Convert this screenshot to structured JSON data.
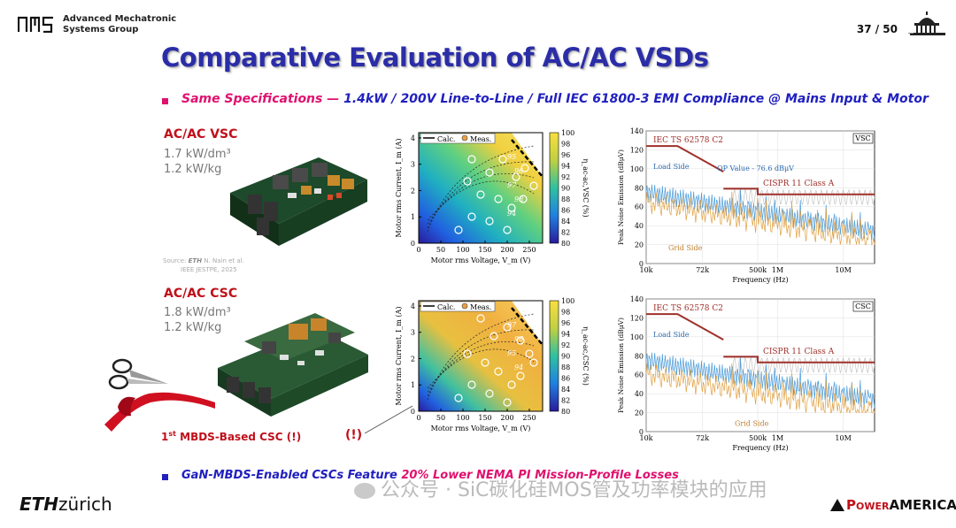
{
  "header": {
    "group_line1": "Advanced Mechatronic",
    "group_line2": "Systems Group",
    "page": "37 / 50"
  },
  "title": "Comparative Evaluation of AC/AC VSDs",
  "specs": {
    "pink": "Same Specifications — ",
    "blue": "1.4kW / 200V Line-to-Line / Full IEC 61800-3 EMI Compliance @ Mains Input & Motor"
  },
  "vsc": {
    "label": "AC/AC VSC",
    "vol_density": "1.7 kW/dm³",
    "mass_density": "1.2 kW/kg",
    "source_prefix": "Source: ",
    "source_logo": "ETH",
    "source_line1": " N. Nain et al.",
    "source_line2": "IEEE JESTPE, 2025"
  },
  "csc": {
    "label": "AC/AC CSC",
    "vol_density": "1.8 kW/dm³",
    "mass_density": "1.2 kW/kg",
    "mbds_pre": "1",
    "mbds_sup": "st",
    "mbds_post": " MBDS-Based CSC (!)",
    "excl": "(!)"
  },
  "bottom": {
    "blue": "GaN-MBDS-Enabled CSCs Feature ",
    "pink": "20% Lower NEMA PI Mission-Profile Losses"
  },
  "watermark": "公众号 · SiC碳化硅MOS管及功率模块的应用",
  "footer": {
    "eth_bold": "ETH",
    "eth_rest": "zürich",
    "pa_1": "P",
    "pa_2": "OWER",
    "pa_3": "AMERICA"
  },
  "colors": {
    "title": "#2b2da8",
    "pink": "#e0106e",
    "red": "#c0101a",
    "blue": "#2020c0"
  },
  "chart_data": [
    {
      "type": "heatmap",
      "name": "VSC efficiency map",
      "xlabel": "Motor rms Voltage, V_m (V)",
      "ylabel": "Motor rms Current, I_m (A)",
      "xticks": [
        "0",
        "50",
        "100",
        "150",
        "200",
        "250"
      ],
      "yticks": [
        "0",
        "1",
        "2",
        "3",
        "4"
      ],
      "xlim": [
        0,
        280
      ],
      "ylim": [
        0,
        4.2
      ],
      "colorbar_label": "η_ac-ac,VSC (%)",
      "colorbar_ticks": [
        "100",
        "98",
        "96",
        "94",
        "92",
        "90",
        "88",
        "86",
        "84",
        "82",
        "80"
      ],
      "legend": [
        "Calc.",
        "Meas."
      ],
      "contour_labels": [
        "95",
        "96",
        "97",
        "98",
        "94"
      ]
    },
    {
      "type": "heatmap",
      "name": "CSC efficiency map",
      "xlabel": "Motor rms Voltage, V_m (V)",
      "ylabel": "Motor rms Current, I_m (A)",
      "xticks": [
        "0",
        "50",
        "100",
        "150",
        "200",
        "250"
      ],
      "yticks": [
        "0",
        "1",
        "2",
        "3",
        "4"
      ],
      "xlim": [
        0,
        280
      ],
      "ylim": [
        0,
        4.2
      ],
      "colorbar_label": "η_ac-ac,CSC (%)",
      "colorbar_ticks": [
        "100",
        "98",
        "96",
        "94",
        "92",
        "90",
        "88",
        "86",
        "84",
        "82",
        "80"
      ],
      "legend": [
        "Calc.",
        "Meas."
      ],
      "contour_labels": [
        "97",
        "96",
        "95",
        "94"
      ]
    },
    {
      "type": "line",
      "name": "VSC EMI spectrum",
      "xlabel": "Frequency (Hz)",
      "ylabel": "Peak Noise Emission (dBμV)",
      "xticks": [
        "10k",
        "72k",
        "500k",
        "1M",
        "10M"
      ],
      "yticks": [
        "0",
        "20",
        "40",
        "60",
        "80",
        "100",
        "120",
        "140"
      ],
      "ylim": [
        0,
        140
      ],
      "tag": "VSC",
      "annotations": [
        "IEC TS 62578 C2",
        "QP Value - 76.6 dBμV",
        "CISPR 11 Class A",
        "Load Side",
        "Grid Side"
      ]
    },
    {
      "type": "line",
      "name": "CSC EMI spectrum",
      "xlabel": "Frequency (Hz)",
      "ylabel": "Peak Noise Emission (dBμV)",
      "xticks": [
        "10k",
        "72k",
        "500k",
        "1M",
        "10M"
      ],
      "yticks": [
        "0",
        "20",
        "40",
        "60",
        "80",
        "100",
        "120",
        "140"
      ],
      "ylim": [
        0,
        140
      ],
      "tag": "CSC",
      "annotations": [
        "IEC TS 62578 C2",
        "CISPR 11 Class A",
        "Load Side",
        "Grid Side"
      ]
    }
  ]
}
